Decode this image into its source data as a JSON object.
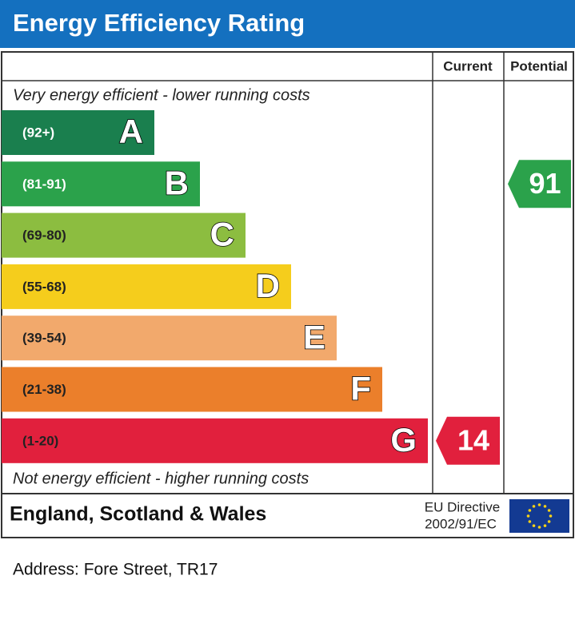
{
  "title": "Energy Efficiency Rating",
  "columns": {
    "current": "Current",
    "potential": "Potential"
  },
  "top_note": "Very energy efficient - lower running costs",
  "bottom_note": "Not energy efficient - higher running costs",
  "bands": [
    {
      "range": "(92+)",
      "letter": "A",
      "color": "#1a7f4e"
    },
    {
      "range": "(81-91)",
      "letter": "B",
      "color": "#2ba24b"
    },
    {
      "range": "(69-80)",
      "letter": "C",
      "color": "#8cbd40"
    },
    {
      "range": "(55-68)",
      "letter": "D",
      "color": "#f5cd1c"
    },
    {
      "range": "(39-54)",
      "letter": "E",
      "color": "#f2a96c"
    },
    {
      "range": "(21-38)",
      "letter": "F",
      "color": "#eb7f2b"
    },
    {
      "range": "(1-20)",
      "letter": "G",
      "color": "#e1203d"
    }
  ],
  "current": 14,
  "potential": 91,
  "footer": {
    "region": "England, Scotland & Wales",
    "directive_line1": "EU Directive",
    "directive_line2": "2002/91/EC"
  },
  "address": "Address: Fore Street, TR17"
}
